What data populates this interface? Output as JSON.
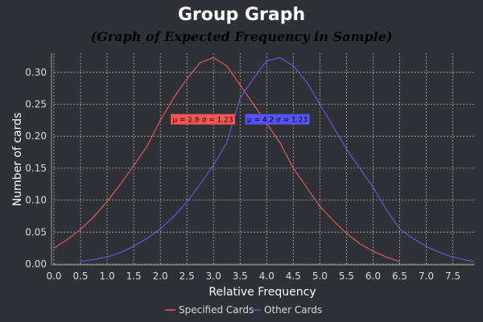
{
  "chart_data": {
    "type": "line",
    "title": "Group Graph",
    "subtitle": "(Graph of Expected Frequency in Sample)",
    "xlabel": "Relative Frequency",
    "ylabel": "Number of cards",
    "xlim": [
      0.0,
      7.9
    ],
    "ylim": [
      0.0,
      0.33
    ],
    "x_ticks": [
      "0.0",
      "0.5",
      "1.0",
      "1.5",
      "2.0",
      "2.5",
      "3.0",
      "3.5",
      "4.0",
      "4.5",
      "5.0",
      "5.5",
      "6.0",
      "6.5",
      "7.0",
      "7.5"
    ],
    "y_ticks": [
      "0.00",
      "0.05",
      "0.10",
      "0.15",
      "0.20",
      "0.25",
      "0.30"
    ],
    "grid": true,
    "legend_position": "bottom-center",
    "series": [
      {
        "name": "Specified Cards",
        "color": "#e05a5a",
        "x": [
          0.0,
          0.25,
          0.5,
          0.75,
          1.0,
          1.25,
          1.5,
          1.75,
          2.0,
          2.25,
          2.5,
          2.75,
          3.0,
          3.25,
          3.5,
          3.75,
          4.0,
          4.25,
          4.5,
          4.75,
          5.0,
          5.25,
          5.5,
          5.75,
          6.0,
          6.25,
          6.5
        ],
        "y": [
          0.025,
          0.038,
          0.054,
          0.074,
          0.098,
          0.125,
          0.154,
          0.184,
          0.225,
          0.26,
          0.29,
          0.315,
          0.323,
          0.31,
          0.28,
          0.25,
          0.22,
          0.19,
          0.15,
          0.12,
          0.09,
          0.068,
          0.048,
          0.032,
          0.02,
          0.011,
          0.004
        ]
      },
      {
        "name": "Other Cards",
        "color": "#5a5ae0",
        "x": [
          0.5,
          0.75,
          1.0,
          1.25,
          1.5,
          1.75,
          2.0,
          2.25,
          2.5,
          2.75,
          3.0,
          3.25,
          3.5,
          3.75,
          4.0,
          4.25,
          4.5,
          4.75,
          5.0,
          5.25,
          5.5,
          5.75,
          6.0,
          6.25,
          6.5,
          6.75,
          7.0,
          7.25,
          7.5,
          7.75,
          7.9
        ],
        "y": [
          0.004,
          0.007,
          0.011,
          0.018,
          0.028,
          0.04,
          0.055,
          0.074,
          0.097,
          0.125,
          0.155,
          0.19,
          0.26,
          0.29,
          0.318,
          0.323,
          0.31,
          0.285,
          0.25,
          0.215,
          0.18,
          0.15,
          0.12,
          0.085,
          0.055,
          0.04,
          0.028,
          0.018,
          0.011,
          0.006,
          0.004
        ]
      }
    ],
    "annotations": [
      {
        "text": "μ = 2.8 σ = 1.23",
        "x": 2.8,
        "y": 0.2265,
        "color": "#ff5555"
      },
      {
        "text": "μ = 4.2 σ = 1.23",
        "x": 4.2,
        "y": 0.2265,
        "color": "#5555ff"
      }
    ]
  }
}
